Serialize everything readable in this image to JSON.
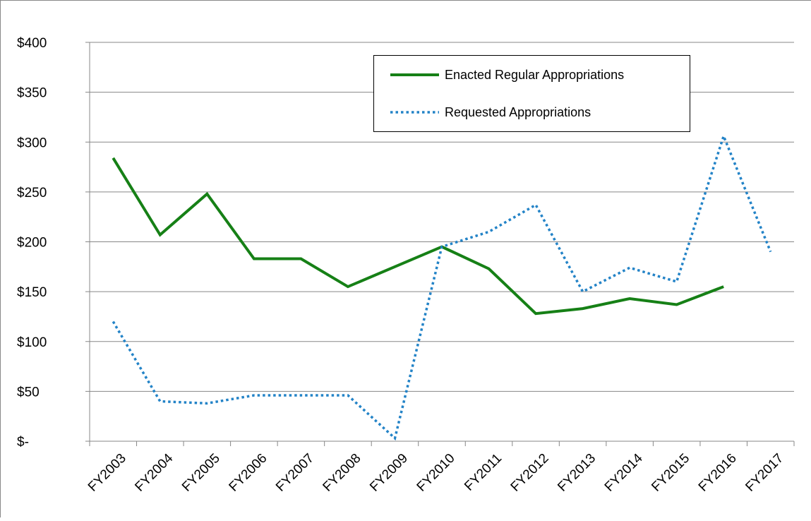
{
  "chart_data": {
    "type": "line",
    "categories": [
      "FY2003",
      "FY2004",
      "FY2005",
      "FY2006",
      "FY2007",
      "FY2008",
      "FY2009",
      "FY2010",
      "FY2011",
      "FY2012",
      "FY2013",
      "FY2014",
      "FY2015",
      "FY2016",
      "FY2017"
    ],
    "series": [
      {
        "name": "Enacted Regular Appropriations",
        "color": "#168016",
        "linestyle": "solid",
        "values": [
          284,
          207,
          248,
          183,
          183,
          155,
          175,
          195,
          173,
          128,
          133,
          143,
          137,
          155,
          null
        ]
      },
      {
        "name": "Requested Appropriations",
        "color": "#2383c7",
        "linestyle": "dotted",
        "values": [
          120,
          40,
          38,
          46,
          46,
          46,
          3,
          195,
          210,
          237,
          150,
          174,
          160,
          306,
          190
        ]
      }
    ],
    "ylim": [
      0,
      400
    ],
    "yticks": [
      {
        "value": 0,
        "label": "$-"
      },
      {
        "value": 50,
        "label": "$50"
      },
      {
        "value": 100,
        "label": "$100"
      },
      {
        "value": 150,
        "label": "$150"
      },
      {
        "value": 200,
        "label": "$200"
      },
      {
        "value": 250,
        "label": "$250"
      },
      {
        "value": 300,
        "label": "$300"
      },
      {
        "value": 350,
        "label": "$350"
      },
      {
        "value": 400,
        "label": "$400"
      }
    ],
    "grid": true
  }
}
